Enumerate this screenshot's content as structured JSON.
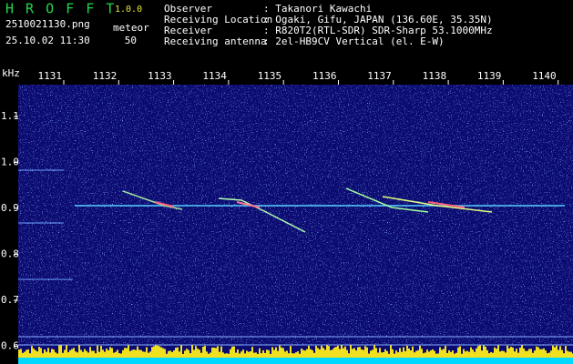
{
  "app": {
    "name": "H R O F F T",
    "version": "1.0.0"
  },
  "file": {
    "name": "2510021130.png",
    "mode": "meteor",
    "datetime": "25.10.02 11:30",
    "level": "50"
  },
  "info": [
    {
      "label": "Observer",
      "value": ": Takanori Kawachi"
    },
    {
      "label": "Receiving Location",
      "value": ": Ogaki, Gifu, JAPAN (136.60E, 35.35N)"
    },
    {
      "label": "Receiver",
      "value": ": R820T2(RTL-SDR) SDR-Sharp 53.1000MHz"
    },
    {
      "label": "Receiving antenna",
      "value": ": 2el-HB9CV Vertical (el. E-W)"
    }
  ],
  "plot": {
    "unit": "kHz",
    "time_labels": [
      "1131",
      "1132",
      "1133",
      "1134",
      "1135",
      "1136",
      "1137",
      "1138",
      "1139",
      "1140"
    ],
    "freq_labels": [
      "1.1",
      "1.0",
      "0.9",
      "0.8",
      "0.7",
      "0.6"
    ]
  }
}
